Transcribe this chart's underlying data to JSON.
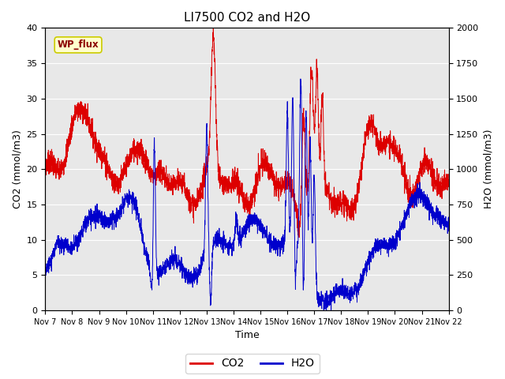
{
  "title": "LI7500 CO2 and H2O",
  "xlabel": "Time",
  "ylabel_left": "CO2 (mmol/m3)",
  "ylabel_right": "H2O (mmol/m3)",
  "annotation_text": "WP_flux",
  "annotation_color": "#8B0000",
  "annotation_bg": "#FFFFCC",
  "annotation_edge": "#CCCC00",
  "left_ylim": [
    0,
    40
  ],
  "right_ylim": [
    0,
    2000
  ],
  "xtick_labels": [
    "Nov 7",
    "Nov 8",
    "Nov 9",
    "Nov 10",
    "Nov 11",
    "Nov 12",
    "Nov 13",
    "Nov 14",
    "Nov 15",
    "Nov 16",
    "Nov 17",
    "Nov 18",
    "Nov 19",
    "Nov 20",
    "Nov 21",
    "Nov 22"
  ],
  "co2_color": "#DD0000",
  "h2o_color": "#0000CC",
  "bg_color": "#E8E8E8",
  "legend_co2": "CO2",
  "legend_h2o": "H2O",
  "n_points": 3000,
  "title_fontsize": 11,
  "figsize": [
    6.4,
    4.8
  ],
  "dpi": 100
}
